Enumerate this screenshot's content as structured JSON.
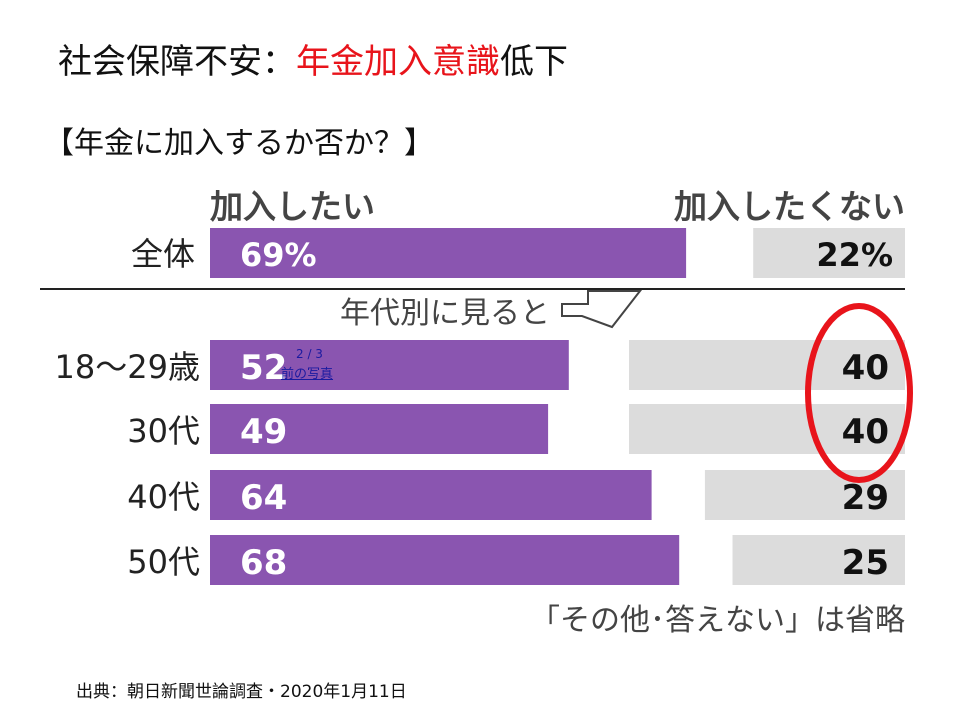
{
  "slide": {
    "title_main": "社会保障不安：",
    "title_highlight": "年金加入意識",
    "title_tail": "低下",
    "subtitle": "【年金に加入するか否か？】",
    "source": "出典：朝日新聞世論調査・2020年1月11日"
  },
  "gallery": {
    "counter": "2 / 3",
    "prev_link": "前の写真"
  },
  "colors": {
    "want": "#8a55b0",
    "not_want": "#dcdcdc",
    "highlight": "#e8141b",
    "title_highlight": "#e8141b"
  },
  "chart_data": {
    "type": "bar",
    "orientation": "horizontal-diverging",
    "headers": {
      "left": "加入したい",
      "right": "加入したくない"
    },
    "total": {
      "label": "全体",
      "want": 69,
      "not_want": 22,
      "want_text": "69%",
      "not_want_text": "22%"
    },
    "divider_label": "年代別に見ると",
    "categories": [
      "18〜29歳",
      "30代",
      "40代",
      "50代"
    ],
    "series": [
      {
        "name": "加入したい",
        "values": [
          52,
          49,
          64,
          68
        ]
      },
      {
        "name": "加入したくない",
        "values": [
          40,
          40,
          29,
          25
        ]
      }
    ],
    "highlighted": [
      0,
      1
    ],
    "note": "「その他･答えない」は省略"
  }
}
